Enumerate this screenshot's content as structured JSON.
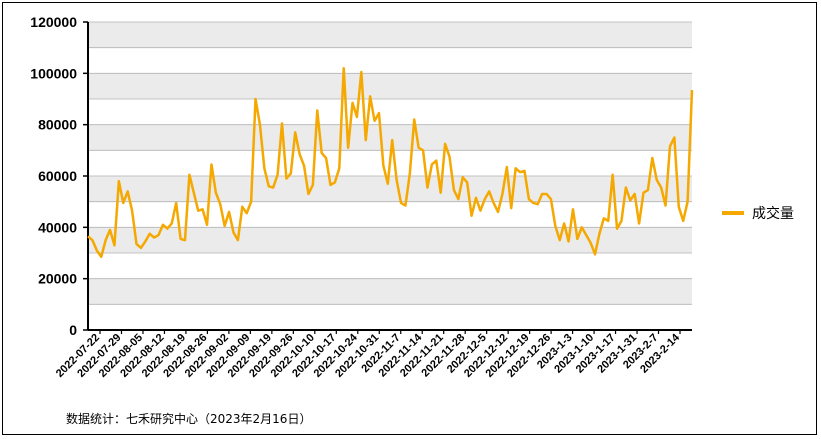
{
  "chart_data": {
    "type": "line",
    "ylim": [
      0,
      120000
    ],
    "yticks": [
      0,
      20000,
      40000,
      60000,
      80000,
      100000,
      120000
    ],
    "grid": true,
    "legend_position": "right",
    "series_color": "#f5a800",
    "xtick_labels": [
      "2022-07-22",
      "2022-07-29",
      "2022-08-05",
      "2022-08-12",
      "2022-08-19",
      "2022-08-26",
      "2022-09-02",
      "2022-09-09",
      "2022-09-19",
      "2022-09-26",
      "2022-10-10",
      "2022-10-17",
      "2022-10-24",
      "2022-10-31",
      "2022-11-7",
      "2022-11-14",
      "2022-11-21",
      "2022-11-28",
      "2022-12-5",
      "2022-12-12",
      "2022-12-19",
      "2022-12-26",
      "2023-1-3",
      "2023-1-10",
      "2023-1-17",
      "2023-1-31",
      "2023-2-7",
      "2023-2-14"
    ],
    "series": [
      {
        "name": "成交量",
        "values": [
          36500,
          35000,
          31000,
          28500,
          35000,
          39000,
          33000,
          58000,
          49500,
          54000,
          46500,
          33500,
          32000,
          34500,
          37500,
          36000,
          37000,
          41000,
          39500,
          41500,
          49500,
          35500,
          35000,
          60500,
          53500,
          46500,
          47000,
          41000,
          64500,
          53500,
          49000,
          40500,
          46000,
          38000,
          35000,
          48000,
          45500,
          50000,
          90000,
          80000,
          63000,
          56000,
          55500,
          60500,
          80500,
          59000,
          61000,
          77000,
          68500,
          64000,
          53000,
          56500,
          85500,
          69000,
          67000,
          56500,
          57500,
          63000,
          102000,
          71000,
          88500,
          83000,
          100500,
          74000,
          91000,
          81500,
          84500,
          64000,
          57000,
          74000,
          58500,
          49500,
          48500,
          61000,
          82000,
          71000,
          70000,
          55500,
          64500,
          66000,
          53500,
          72500,
          67500,
          54500,
          51000,
          59500,
          57500,
          44500,
          51500,
          46500,
          51000,
          54000,
          49500,
          46000,
          53000,
          63500,
          47500,
          63000,
          61500,
          62000,
          51000,
          49500,
          49000,
          53000,
          53000,
          51000,
          40500,
          35000,
          41500,
          34500,
          47000,
          35500,
          40000,
          37000,
          34000,
          29500,
          37500,
          43500,
          42500,
          60500,
          39500,
          42500,
          55500,
          50500,
          53000,
          41500,
          53500,
          54500,
          67000,
          58500,
          55500,
          48500,
          71500,
          75000,
          48000,
          42500,
          50000,
          93500
        ]
      }
    ]
  },
  "footer": {
    "source": "数据统计：七禾研究中心（2023年2月16日）"
  }
}
